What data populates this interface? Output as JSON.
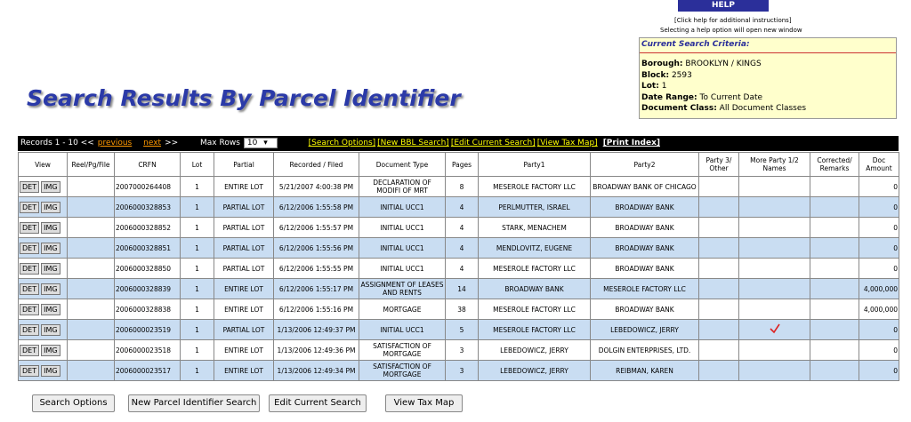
{
  "help": {
    "button": "HELP",
    "note1": "[Click help for additional instructions]",
    "note2": "Selecting a help option will open new window"
  },
  "criteria": {
    "title": "Current Search Criteria:",
    "items": [
      {
        "label": "Borough:",
        "value": "BROOKLYN / KINGS"
      },
      {
        "label": "Block:",
        "value": "2593"
      },
      {
        "label": "Lot:",
        "value": "1"
      },
      {
        "label": "Date Range:",
        "value": "To Current Date"
      },
      {
        "label": "Document Class:",
        "value": "All Document Classes"
      }
    ]
  },
  "title": "Search Results By Parcel Identifier",
  "toolbar": {
    "records": "Records 1 - 10 <<",
    "previous": "previous",
    "next": "next",
    "end": ">>",
    "max_rows_label": "Max Rows",
    "max_rows": "10",
    "links": [
      "[Search Options]",
      "[New BBL Search]",
      "[Edit Current Search]",
      "[View Tax Map]"
    ],
    "print": "[Print Index]"
  },
  "table": {
    "headers": [
      "View",
      "Reel/Pg/File",
      "CRFN",
      "Lot",
      "Partial",
      "Recorded / Filed",
      "Document Type",
      "Pages",
      "Party1",
      "Party2",
      "Party 3/ Other",
      "More Party 1/2 Names",
      "Corrected/ Remarks",
      "Doc Amount"
    ],
    "row_buttons": [
      "DET",
      "IMG"
    ],
    "rows": [
      {
        "crfn": "2007000264408",
        "lot": "1",
        "partial": "ENTIRE LOT",
        "recorded": "5/21/2007 4:00:38 PM",
        "doc_type": "DECLARATION OF MODIFI OF MRT",
        "pages": "8",
        "party1": "MESEROLE FACTORY LLC",
        "party2": "BROADWAY BANK OF CHICAGO",
        "doc_amount": "0"
      },
      {
        "crfn": "2006000328853",
        "lot": "1",
        "partial": "PARTIAL LOT",
        "recorded": "6/12/2006 1:55:58 PM",
        "doc_type": "INITIAL UCC1",
        "pages": "4",
        "party1": "PERLMUTTER, ISRAEL",
        "party2": "BROADWAY BANK",
        "doc_amount": "0"
      },
      {
        "crfn": "2006000328852",
        "lot": "1",
        "partial": "PARTIAL LOT",
        "recorded": "6/12/2006 1:55:57 PM",
        "doc_type": "INITIAL UCC1",
        "pages": "4",
        "party1": "STARK, MENACHEM",
        "party2": "BROADWAY BANK",
        "doc_amount": "0"
      },
      {
        "crfn": "2006000328851",
        "lot": "1",
        "partial": "PARTIAL LOT",
        "recorded": "6/12/2006 1:55:56 PM",
        "doc_type": "INITIAL UCC1",
        "pages": "4",
        "party1": "MENDLOVITZ, EUGENE",
        "party2": "BROADWAY BANK",
        "doc_amount": "0"
      },
      {
        "crfn": "2006000328850",
        "lot": "1",
        "partial": "PARTIAL LOT",
        "recorded": "6/12/2006 1:55:55 PM",
        "doc_type": "INITIAL UCC1",
        "pages": "4",
        "party1": "MESEROLE FACTORY LLC",
        "party2": "BROADWAY BANK",
        "doc_amount": "0"
      },
      {
        "crfn": "2006000328839",
        "lot": "1",
        "partial": "ENTIRE LOT",
        "recorded": "6/12/2006 1:55:17 PM",
        "doc_type": "ASSIGNMENT OF LEASES AND RENTS",
        "pages": "14",
        "party1": "BROADWAY BANK",
        "party2": "MESEROLE FACTORY LLC",
        "doc_amount": "4,000,000"
      },
      {
        "crfn": "2006000328838",
        "lot": "1",
        "partial": "ENTIRE LOT",
        "recorded": "6/12/2006 1:55:16 PM",
        "doc_type": "MORTGAGE",
        "pages": "38",
        "party1": "MESEROLE FACTORY LLC",
        "party2": "BROADWAY BANK",
        "doc_amount": "4,000,000"
      },
      {
        "crfn": "2006000023519",
        "lot": "1",
        "partial": "PARTIAL LOT",
        "recorded": "1/13/2006 12:49:37 PM",
        "doc_type": "INITIAL UCC1",
        "pages": "5",
        "party1": "MESEROLE FACTORY LLC",
        "party2": "LEBEDOWICZ, JERRY",
        "more_party": true,
        "doc_amount": "0"
      },
      {
        "crfn": "2006000023518",
        "lot": "1",
        "partial": "ENTIRE LOT",
        "recorded": "1/13/2006 12:49:36 PM",
        "doc_type": "SATISFACTION OF MORTGAGE",
        "pages": "3",
        "party1": "LEBEDOWICZ, JERRY",
        "party2": "DOLGIN ENTERPRISES, LTD.",
        "doc_amount": "0"
      },
      {
        "crfn": "2006000023517",
        "lot": "1",
        "partial": "ENTIRE LOT",
        "recorded": "1/13/2006 12:49:34 PM",
        "doc_type": "SATISFACTION OF MORTGAGE",
        "pages": "3",
        "party1": "LEBEDOWICZ, JERRY",
        "party2": "REIBMAN, KAREN",
        "doc_amount": "0"
      }
    ]
  },
  "buttons": [
    "Search Options",
    "New Parcel Identifier Search",
    "Edit Current Search",
    "View Tax Map"
  ]
}
